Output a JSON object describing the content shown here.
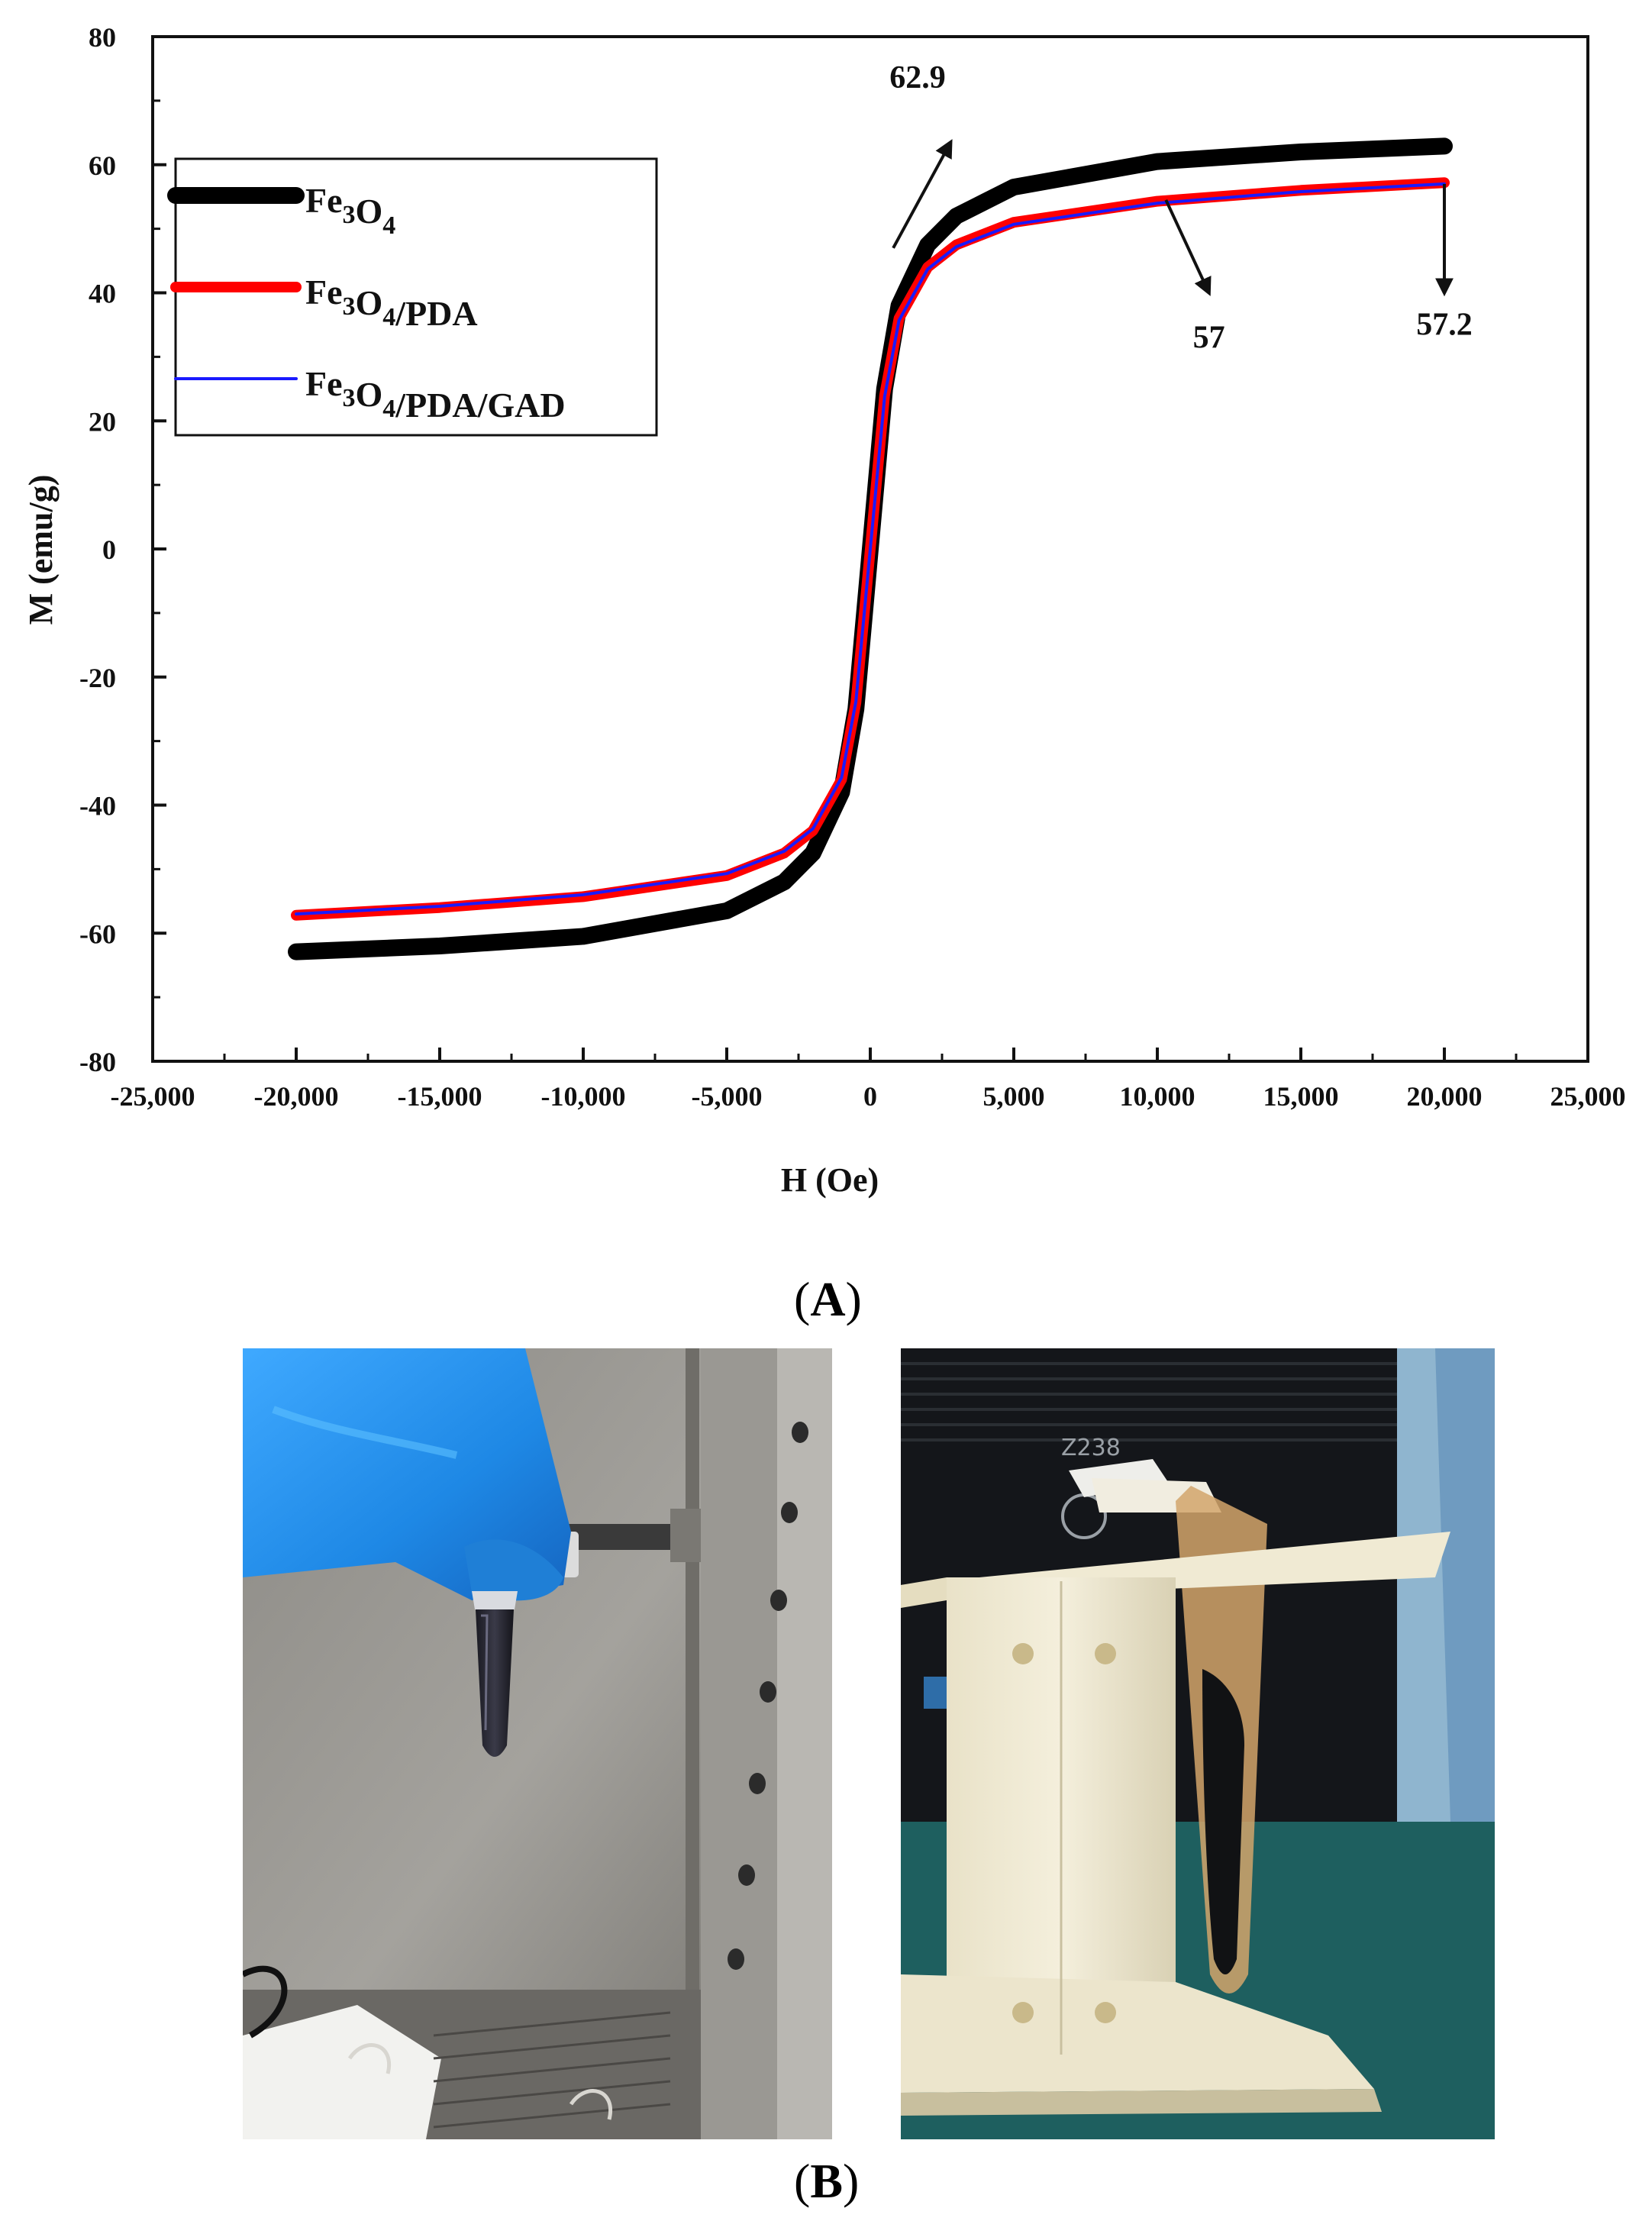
{
  "chart_data": {
    "type": "line",
    "xlabel": "H (Oe)",
    "ylabel": "M (emu/g)",
    "xlim": [
      -25000,
      25000
    ],
    "ylim": [
      -80,
      80
    ],
    "x_ticks": [
      -25000,
      -20000,
      -15000,
      -10000,
      -5000,
      0,
      5000,
      10000,
      15000,
      20000,
      25000
    ],
    "x_tick_labels": [
      "-25,000",
      "-20,000",
      "-15,000",
      "-10,000",
      "-5,000",
      "0",
      "5,000",
      "10,000",
      "15,000",
      "20,000",
      "25,000"
    ],
    "y_ticks": [
      -80,
      -60,
      -40,
      -20,
      0,
      20,
      40,
      60,
      80
    ],
    "y_tick_labels": [
      "-80",
      "-60",
      "-40",
      "-20",
      "0",
      "20",
      "40",
      "60",
      "80"
    ],
    "grid": false,
    "legend_position": "top-left",
    "series": [
      {
        "name": "Fe3O4",
        "legend": {
          "base1": "Fe",
          "sub1": "3",
          "base2": "O",
          "sub2": "4",
          "suffix": ""
        },
        "color": "#000000",
        "x": [
          -20000,
          -15000,
          -10000,
          -5000,
          -3000,
          -2000,
          -1000,
          -500,
          0,
          500,
          1000,
          2000,
          3000,
          5000,
          10000,
          15000,
          20000
        ],
        "y": [
          -62.9,
          -62.0,
          -60.5,
          -56.5,
          -52.0,
          -47.5,
          -38.0,
          -25.0,
          0,
          25.0,
          38.0,
          47.5,
          52.0,
          56.5,
          60.5,
          62.0,
          62.9
        ]
      },
      {
        "name": "Fe3O4/PDA",
        "legend": {
          "base1": "Fe",
          "sub1": "3",
          "base2": "O",
          "sub2": "4",
          "suffix": "/PDA"
        },
        "color": "#ff0000",
        "x": [
          -20000,
          -15000,
          -10000,
          -5000,
          -3000,
          -2000,
          -1000,
          -500,
          0,
          500,
          1000,
          2000,
          3000,
          5000,
          10000,
          15000,
          20000
        ],
        "y": [
          -57.2,
          -56.0,
          -54.3,
          -51.0,
          -47.5,
          -44.0,
          -36.0,
          -24.0,
          0,
          24.0,
          36.0,
          44.0,
          47.5,
          51.0,
          54.3,
          56.0,
          57.2
        ]
      },
      {
        "name": "Fe3O4/PDA/GAD",
        "legend": {
          "base1": "Fe",
          "sub1": "3",
          "base2": "O",
          "sub2": "4",
          "suffix": "/PDA/GAD"
        },
        "color": "#1a1aff",
        "x": [
          -20000,
          -15000,
          -10000,
          -5000,
          -3000,
          -2000,
          -1000,
          -500,
          0,
          500,
          1000,
          2000,
          3000,
          5000,
          10000,
          15000,
          20000
        ],
        "y": [
          -57.0,
          -55.8,
          -54.0,
          -50.7,
          -47.2,
          -43.7,
          -35.7,
          -23.8,
          0,
          23.8,
          35.7,
          43.7,
          47.2,
          50.7,
          54.0,
          55.8,
          57.0
        ]
      }
    ],
    "annotations": [
      {
        "text": "62.9",
        "label_x": 2800,
        "label_y": 72,
        "tail_x": 800,
        "tail_y": 47,
        "head_x": 2800,
        "head_y": 63.5
      },
      {
        "text": "57",
        "label_x": 11800,
        "label_y": 35,
        "tail_x": 10300,
        "tail_y": 54.5,
        "head_x": 11800,
        "head_y": 40
      },
      {
        "text": "57.2",
        "label_x": 20000,
        "label_y": 37,
        "tail_x": 20000,
        "tail_y": 57,
        "head_x": 20000,
        "head_y": 40
      }
    ]
  },
  "panel_labels": {
    "a": {
      "open": "(",
      "letter": "A",
      "close": ")"
    },
    "b": {
      "open": "(",
      "letter": "B",
      "close": ")"
    }
  },
  "photos": {
    "left": {
      "name": "gloved-hand-holding-tube"
    },
    "right": {
      "name": "tube-on-magnetic-stand",
      "monitor_text": "Z238"
    }
  }
}
